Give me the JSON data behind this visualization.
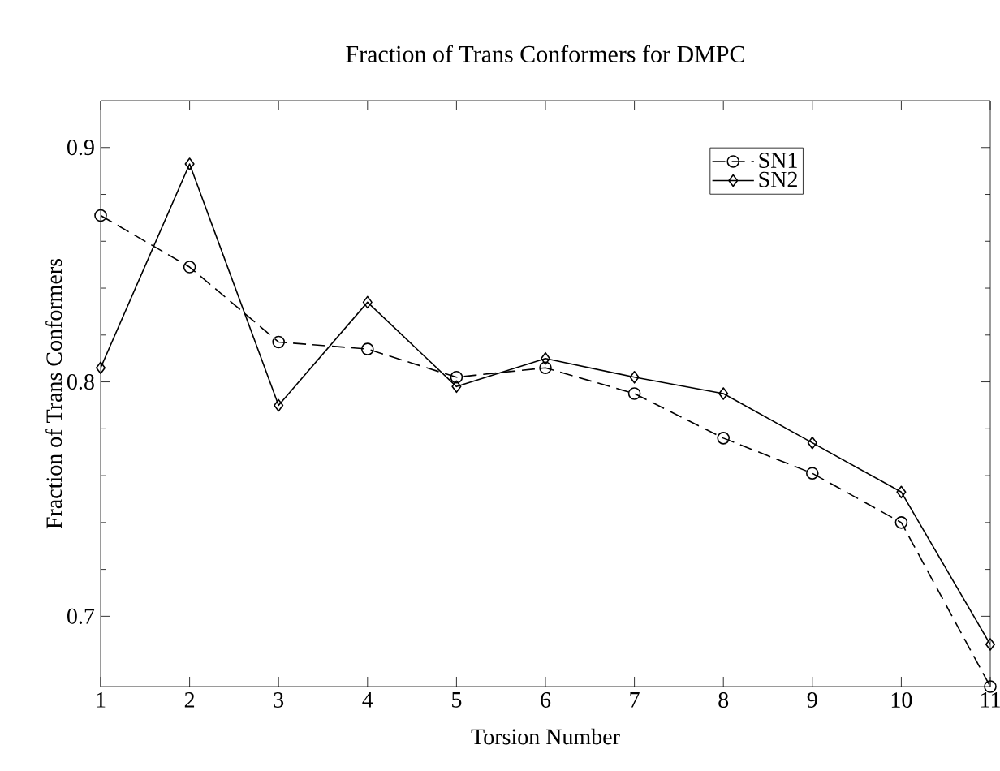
{
  "chart_data": {
    "type": "line",
    "title": "Fraction of Trans Conformers for DMPC",
    "xlabel": "Torsion Number",
    "ylabel": "Fraction of Trans Conformers",
    "x": [
      1,
      2,
      3,
      4,
      5,
      6,
      7,
      8,
      9,
      10,
      11
    ],
    "series": [
      {
        "name": "SN1",
        "color": "#000000",
        "marker": "circle",
        "line_style": "dashed",
        "values": [
          0.871,
          0.849,
          0.817,
          0.814,
          0.802,
          0.806,
          0.795,
          0.776,
          0.761,
          0.74,
          0.67
        ]
      },
      {
        "name": "SN2",
        "color": "#000000",
        "marker": "diamond",
        "line_style": "solid",
        "values": [
          0.806,
          0.893,
          0.79,
          0.834,
          0.798,
          0.81,
          0.802,
          0.795,
          0.774,
          0.753,
          0.688
        ]
      }
    ],
    "xlim": [
      1,
      11
    ],
    "xticks": [
      1,
      2,
      3,
      4,
      5,
      6,
      7,
      8,
      9,
      10,
      11
    ],
    "ylim": [
      0.67,
      0.92
    ],
    "yticks": [
      0.7,
      0.8,
      0.9
    ],
    "grid": false,
    "legend": "top right"
  }
}
